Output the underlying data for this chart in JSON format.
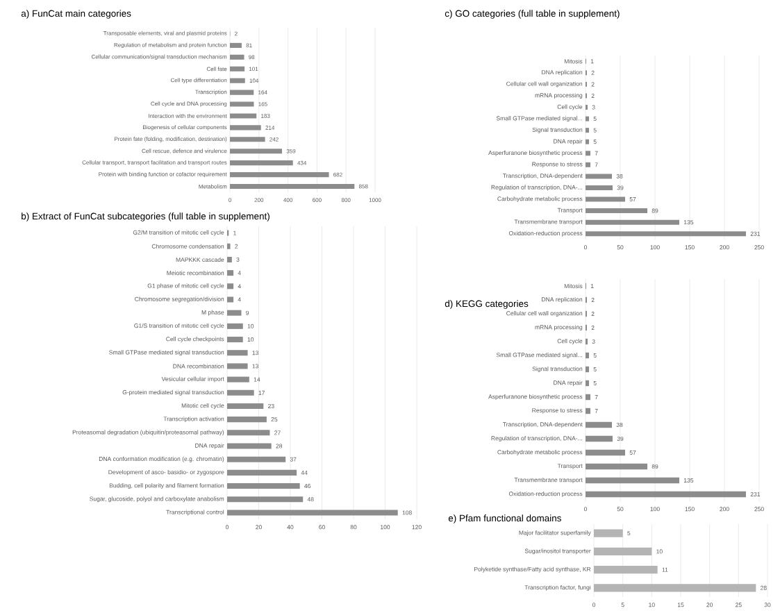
{
  "chart_data": [
    {
      "type": "bar",
      "orientation": "horizontal",
      "title": "a)  FunCat main categories",
      "categories": [
        "Transposable elements, viral and plasmid proteins",
        "Regulation of metabolism and protein function",
        "Cellular communication/signal transduction mechanism",
        "Cell fate",
        "Cell type differentiation",
        "Transcription",
        "Cell cycle and DNA processing",
        "Interaction with the environment",
        "Biogenesis of cellular components",
        "Protein fate (folding, modification, destination)",
        "Cell rescue, defence and virulence",
        "Cellular transport, transport facilitation and transport routes",
        "Protein with binding function or cofactor requirement",
        "Metabolism"
      ],
      "values": [
        2,
        81,
        98,
        101,
        104,
        164,
        165,
        183,
        214,
        242,
        359,
        434,
        682,
        858
      ],
      "color": "#8c8c8c",
      "xlim": [
        0,
        1000
      ],
      "xticks": [
        0,
        200,
        400,
        600,
        800,
        1000
      ],
      "grid": "x",
      "data_labels": true
    },
    {
      "type": "bar",
      "orientation": "horizontal",
      "title": "b)  Extract of FunCat subcategories (full table in supplement)",
      "categories": [
        "G2/M transition of mitotic cell cycle",
        "Chromosome condensation",
        "MAPKKK cascade",
        "Meiotic recombination",
        "G1 phase of mitotic cell cycle",
        "Chromosome segregation/division",
        "M phase",
        "G1/S transition of mitotic cell cycle",
        "Cell cycle checkpoints",
        "Small GTPase mediated signal transduction",
        "DNA recombination",
        "Vesicular cellular import",
        "G-protein mediated signal transduction",
        "Mitotic cell cycle",
        "Transcription activation",
        "Proteasomal degradation (ubiquitin/proteasomal pathway)",
        "DNA repair",
        "DNA conformation modification (e.g. chromatin)",
        "Development of asco- basidio- or zygospore",
        "Budding, cell polarity and filament formation",
        "Sugar, glucoside, polyol and carboxylate anabolism",
        "Transcriptional control"
      ],
      "values": [
        1,
        2,
        3,
        4,
        4,
        4,
        9,
        10,
        10,
        13,
        13,
        14,
        17,
        23,
        25,
        27,
        28,
        37,
        44,
        46,
        48,
        108
      ],
      "color": "#8c8c8c",
      "xlim": [
        0,
        120
      ],
      "xticks": [
        0,
        20,
        40,
        60,
        80,
        100,
        120
      ],
      "grid": "x",
      "data_labels": true
    },
    {
      "type": "bar",
      "orientation": "horizontal",
      "title": "c)  GO categories (full table in supplement)",
      "categories": [
        "Mitosis",
        "DNA replication",
        "Cellular cell wall organization",
        "mRNA processing",
        "Cell cycle",
        "Small GTPase mediated signal...",
        "Signal transduction",
        "DNA repair",
        "Asperfuranone biosynthetic process",
        "Response to stress",
        "Transcription, DNA-dependent",
        "Regulation of transcription, DNA-...",
        "Carbohydrate metabolic process",
        "Transport",
        "Transmembrane transport",
        "Oxidation-reduction process"
      ],
      "values": [
        1,
        2,
        2,
        2,
        3,
        5,
        5,
        5,
        7,
        7,
        38,
        39,
        57,
        89,
        135,
        231
      ],
      "color": "#8c8c8c",
      "xlim": [
        0,
        250
      ],
      "xticks": [
        0,
        50,
        100,
        150,
        200,
        250
      ],
      "grid": "x",
      "data_labels": true
    },
    {
      "type": "bar",
      "orientation": "horizontal",
      "title": "d)  KEGG categories",
      "categories": [
        "Mitosis",
        "DNA replication",
        "Cellular cell wall organization",
        "mRNA processing",
        "Cell cycle",
        "Small GTPase mediated signal...",
        "Signal transduction",
        "DNA repair",
        "Asperfuranone biosynthetic process",
        "Response to stress",
        "Transcription, DNA-dependent",
        "Regulation of transcription, DNA-...",
        "Carbohydrate metabolic process",
        "Transport",
        "Transmembrane transport",
        "Oxidation-reduction process"
      ],
      "values": [
        1,
        2,
        2,
        2,
        3,
        5,
        5,
        5,
        7,
        7,
        38,
        39,
        57,
        89,
        135,
        231
      ],
      "color": "#8c8c8c",
      "xlim": [
        0,
        250
      ],
      "xticks": [
        0,
        50,
        100,
        150,
        200,
        250
      ],
      "grid": "x",
      "data_labels": true
    },
    {
      "type": "bar",
      "orientation": "horizontal",
      "title": "e)  Pfam functional domains",
      "categories": [
        "Major facilitator superfamily",
        "Sugar/inositol transporter",
        "Polyketide synthase/Fatty acid synthase, KR",
        "Transcription factor, fungi"
      ],
      "values": [
        5,
        10,
        11,
        28
      ],
      "color": "#b4b4b4",
      "xlim": [
        0,
        30
      ],
      "xticks": [
        0,
        5,
        10,
        15,
        20,
        25,
        30
      ],
      "grid": "x",
      "data_labels": true
    }
  ]
}
